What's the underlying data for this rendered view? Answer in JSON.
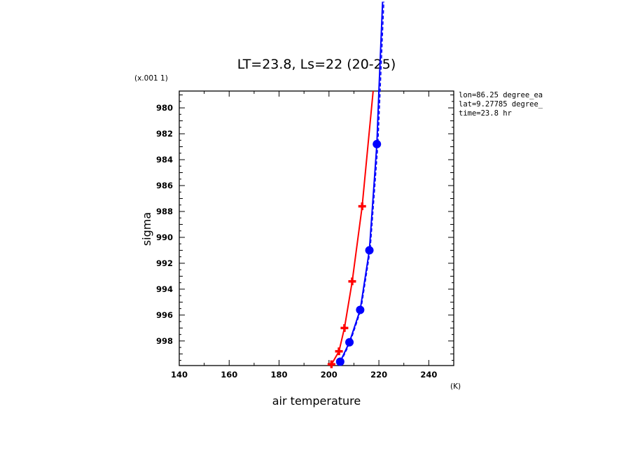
{
  "chart_data": {
    "type": "line",
    "title": "LT=23.8, Ls=22 (20-25)",
    "xlabel": "air temperature",
    "ylabel": "sigma",
    "x_unit": "(K)",
    "y_scale_note": "(x.001 1)",
    "xlim": [
      140,
      250
    ],
    "ylim": [
      999.9,
      978.7
    ],
    "y_inverted": true,
    "x_ticks": [
      140,
      160,
      180,
      200,
      220,
      240
    ],
    "y_ticks": [
      980,
      982,
      984,
      986,
      988,
      990,
      992,
      994,
      996,
      998
    ],
    "grid": false,
    "annotations": [
      "lon=86.25 degree_ea",
      "lat=9.27785 degree_",
      "time=23.8 hr"
    ],
    "series": [
      {
        "color": "#ff0000",
        "marker": "plus",
        "line_style": "solid",
        "x": [
          201.0,
          204.0,
          206.2,
          209.3,
          213.3,
          217.7
        ],
        "y": [
          999.8,
          998.8,
          997.0,
          993.4,
          987.6,
          978.7
        ]
      },
      {
        "color": "#0000ff",
        "marker": "circle",
        "line_style": "solid",
        "x": [
          204.5,
          208.2,
          212.5,
          216.2,
          219.2,
          220.0,
          221.5
        ],
        "y": [
          999.6,
          998.1,
          995.6,
          991.0,
          982.8,
          978.7,
          971.8
        ]
      },
      {
        "color": "#0000ff",
        "marker": "none",
        "line_style": "dashed",
        "x": [
          204.8,
          208.5,
          212.8,
          216.5,
          219.6,
          220.5,
          222.0
        ],
        "y": [
          999.6,
          998.1,
          995.6,
          991.0,
          982.8,
          978.7,
          971.8
        ]
      }
    ]
  }
}
